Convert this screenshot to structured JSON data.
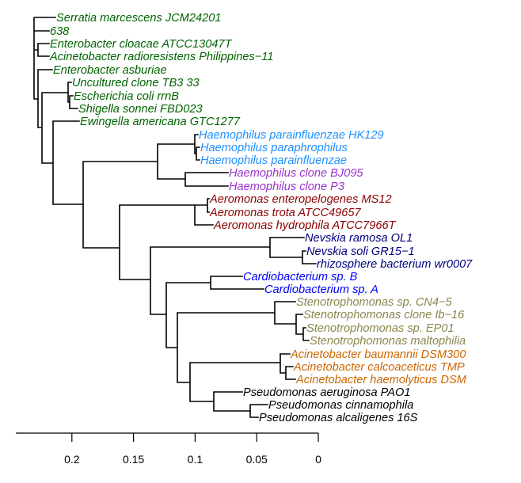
{
  "colors": {
    "enterobacteria": "#006400",
    "haemophilus": "#1E90FF",
    "haemophilus_clone": "#9932CC",
    "aeromonas": "#8B0000",
    "nevskia": "#000080",
    "cardiobacterium": "#0000FF",
    "stenotrophomonas": "#8B864E",
    "acinetobacter": "#CD6600",
    "pseudomonas": "#000000"
  },
  "leaves": [
    {
      "label": "Serratia marcescens JCM24201",
      "group": "enterobacteria"
    },
    {
      "label": "638",
      "group": "enterobacteria"
    },
    {
      "label": "Enterobacter cloacae ATCC13047T",
      "group": "enterobacteria"
    },
    {
      "label": "Acinetobacter radioresistens Philippines−11",
      "group": "enterobacteria"
    },
    {
      "label": "Enterobacter asburiae",
      "group": "enterobacteria"
    },
    {
      "label": "Uncultured clone TB3 33",
      "group": "enterobacteria"
    },
    {
      "label": "Escherichia coli rrnB",
      "group": "enterobacteria"
    },
    {
      "label": "Shigella sonnei FBD023",
      "group": "enterobacteria"
    },
    {
      "label": "Ewingella americana GTC1277",
      "group": "enterobacteria"
    },
    {
      "label": "Haemophilus parainfluenzae HK129",
      "group": "haemophilus"
    },
    {
      "label": "Haemophilus paraphrophilus",
      "group": "haemophilus"
    },
    {
      "label": "Haemophilus parainfluenzae",
      "group": "haemophilus"
    },
    {
      "label": "Haemophilus clone BJ095",
      "group": "haemophilus_clone"
    },
    {
      "label": "Haemophilus clone P3",
      "group": "haemophilus_clone"
    },
    {
      "label": "Aeromonas enteropelogenes MS12",
      "group": "aeromonas"
    },
    {
      "label": "Aeromonas trota ATCC49657",
      "group": "aeromonas"
    },
    {
      "label": "Aeromonas hydrophila ATCC7966T",
      "group": "aeromonas"
    },
    {
      "label": "Nevskia ramosa OL1",
      "group": "nevskia"
    },
    {
      "label": "Nevskia soli GR15−1",
      "group": "nevskia"
    },
    {
      "label": "rhizosphere bacterium wr0007",
      "group": "nevskia"
    },
    {
      "label": "Cardiobacterium sp. B",
      "group": "cardiobacterium"
    },
    {
      "label": "Cardiobacterium sp. A",
      "group": "cardiobacterium"
    },
    {
      "label": "Stenotrophomonas sp. CN4−5",
      "group": "stenotrophomonas"
    },
    {
      "label": "Stenotrophomonas clone Ib−16",
      "group": "stenotrophomonas"
    },
    {
      "label": "Stenotrophomonas sp. EP01",
      "group": "stenotrophomonas"
    },
    {
      "label": "Stenotrophomonas maltophilia",
      "group": "stenotrophomonas"
    },
    {
      "label": "Acinetobacter baumannii DSM300",
      "group": "acinetobacter"
    },
    {
      "label": "Acinetobacter calcoaceticus TMP",
      "group": "acinetobacter"
    },
    {
      "label": "Acinetobacter haemolyticus DSM",
      "group": "acinetobacter"
    },
    {
      "label": "Pseudomonas aeruginosa PAO1",
      "group": "pseudomonas"
    },
    {
      "label": "Pseudomonas cinnamophila",
      "group": "pseudomonas"
    },
    {
      "label": "Pseudomonas alcaligenes 16S",
      "group": "pseudomonas"
    }
  ],
  "axis": {
    "ticks": [
      {
        "value": 0.2,
        "label": "0.2"
      },
      {
        "value": 0.15,
        "label": "0.15"
      },
      {
        "value": 0.1,
        "label": "0.1"
      },
      {
        "value": 0.05,
        "label": "0.05"
      },
      {
        "value": 0,
        "label": "0"
      }
    ]
  }
}
